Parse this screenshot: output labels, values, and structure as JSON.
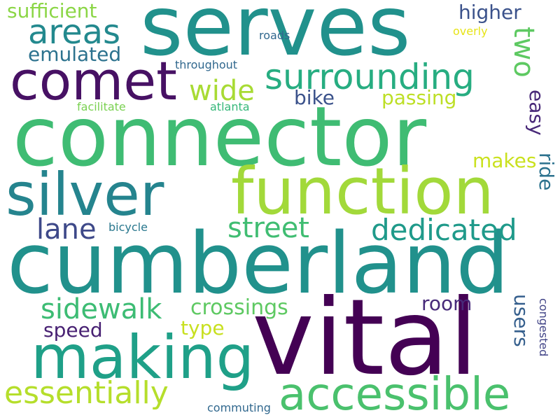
{
  "words": [
    {
      "text": "serves",
      "color": "#21918c",
      "vertical": false
    },
    {
      "text": "connector",
      "color": "#3fbc73",
      "vertical": false
    },
    {
      "text": "cumberland",
      "color": "#21918c",
      "vertical": false
    },
    {
      "text": "vital",
      "color": "#440154",
      "vertical": false
    },
    {
      "text": "function",
      "color": "#a2d93a",
      "vertical": false
    },
    {
      "text": "silver",
      "color": "#25848e",
      "vertical": false
    },
    {
      "text": "comet",
      "color": "#471164",
      "vertical": false
    },
    {
      "text": "making",
      "color": "#1fa088",
      "vertical": false
    },
    {
      "text": "accessible",
      "color": "#4ac16d",
      "vertical": false
    },
    {
      "text": "surrounding",
      "color": "#27ad81",
      "vertical": false
    },
    {
      "text": "areas",
      "color": "#23898e",
      "vertical": false
    },
    {
      "text": "dedicated",
      "color": "#1f9a8a",
      "vertical": false
    },
    {
      "text": "essentially",
      "color": "#b5de2b",
      "vertical": false
    },
    {
      "text": "sidewalk",
      "color": "#3dbc74",
      "vertical": false
    },
    {
      "text": "street",
      "color": "#40bd72",
      "vertical": false
    },
    {
      "text": "wide",
      "color": "#a8db34",
      "vertical": false
    },
    {
      "text": "lane",
      "color": "#3e4989",
      "vertical": false
    },
    {
      "text": "two",
      "color": "#5ec962",
      "vertical": true
    },
    {
      "text": "crossings",
      "color": "#5ec962",
      "vertical": false
    },
    {
      "text": "sufficient",
      "color": "#8bd646",
      "vertical": false
    },
    {
      "text": "emulated",
      "color": "#2c728e",
      "vertical": false
    },
    {
      "text": "higher",
      "color": "#3b528b",
      "vertical": false
    },
    {
      "text": "passing",
      "color": "#bddf26",
      "vertical": false
    },
    {
      "text": "bike",
      "color": "#3b528b",
      "vertical": false
    },
    {
      "text": "easy",
      "color": "#482878",
      "vertical": true
    },
    {
      "text": "makes",
      "color": "#cae11f",
      "vertical": false
    },
    {
      "text": "ride",
      "color": "#2c728e",
      "vertical": true
    },
    {
      "text": "users",
      "color": "#355f8d",
      "vertical": true
    },
    {
      "text": "room",
      "color": "#472a7a",
      "vertical": false
    },
    {
      "text": "speed",
      "color": "#482173",
      "vertical": false
    },
    {
      "text": "type",
      "color": "#c8e020",
      "vertical": false
    },
    {
      "text": "roads",
      "color": "#31688e",
      "vertical": false
    },
    {
      "text": "overly",
      "color": "#e7e419",
      "vertical": false
    },
    {
      "text": "throughout",
      "color": "#31688e",
      "vertical": false
    },
    {
      "text": "facilitate",
      "color": "#7ad151",
      "vertical": false
    },
    {
      "text": "atlanta",
      "color": "#35b779",
      "vertical": false
    },
    {
      "text": "bicycle",
      "color": "#2a788e",
      "vertical": false
    },
    {
      "text": "congested",
      "color": "#414487",
      "vertical": true
    },
    {
      "text": "commuting",
      "color": "#31688e",
      "vertical": false
    }
  ]
}
